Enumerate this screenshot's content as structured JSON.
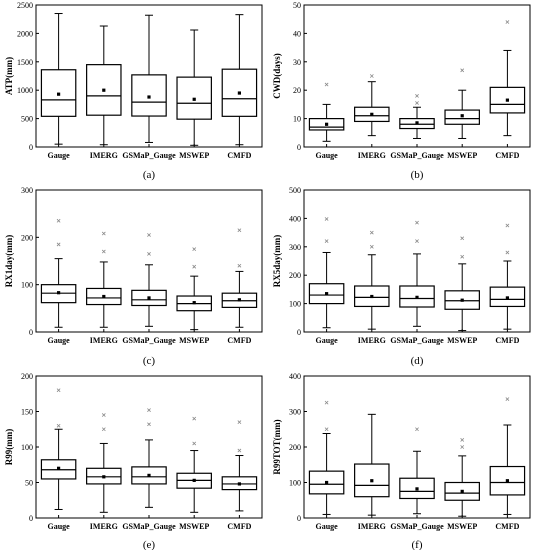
{
  "chart_data": [
    {
      "panel": "(a)",
      "type": "box",
      "ylabel": "ATP(mm)",
      "categories": [
        "Gauge",
        "IMERG",
        "GSMaP_Gauge",
        "MSWEP",
        "CMFD"
      ],
      "ylim": [
        0,
        2500
      ],
      "yticks": [
        0,
        500,
        1000,
        1500,
        2000,
        2500
      ],
      "boxes": [
        {
          "min": 50,
          "q1": 540,
          "median": 830,
          "q3": 1360,
          "max": 2350,
          "mean": 930,
          "outliers": []
        },
        {
          "min": 40,
          "q1": 560,
          "median": 900,
          "q3": 1450,
          "max": 2130,
          "mean": 1000,
          "outliers": []
        },
        {
          "min": 80,
          "q1": 545,
          "median": 790,
          "q3": 1270,
          "max": 2320,
          "mean": 880,
          "outliers": []
        },
        {
          "min": 30,
          "q1": 490,
          "median": 770,
          "q3": 1230,
          "max": 2060,
          "mean": 840,
          "outliers": []
        },
        {
          "min": 40,
          "q1": 540,
          "median": 850,
          "q3": 1370,
          "max": 2330,
          "mean": 950,
          "outliers": []
        }
      ]
    },
    {
      "panel": "(b)",
      "type": "box",
      "ylabel": "CWD(days)",
      "categories": [
        "Gauge",
        "IMERG",
        "GSMaP_Gauge",
        "MSWEP",
        "CMFD"
      ],
      "ylim": [
        0,
        50
      ],
      "yticks": [
        0,
        10,
        20,
        30,
        40,
        50
      ],
      "boxes": [
        {
          "min": 2,
          "q1": 6,
          "median": 7,
          "q3": 10,
          "max": 15,
          "mean": 8,
          "outliers": [
            22
          ]
        },
        {
          "min": 4,
          "q1": 9,
          "median": 11,
          "q3": 14,
          "max": 23,
          "mean": 11.5,
          "outliers": [
            25
          ]
        },
        {
          "min": 3,
          "q1": 6.5,
          "median": 8,
          "q3": 10,
          "max": 14,
          "mean": 8.5,
          "outliers": [
            18,
            15.5
          ]
        },
        {
          "min": 3,
          "q1": 8,
          "median": 10,
          "q3": 13,
          "max": 20,
          "mean": 11,
          "outliers": [
            27
          ]
        },
        {
          "min": 4,
          "q1": 12,
          "median": 15,
          "q3": 21,
          "max": 34,
          "mean": 16.5,
          "outliers": [
            44
          ]
        }
      ]
    },
    {
      "panel": "(c)",
      "type": "box",
      "ylabel": "RX1day(mm)",
      "categories": [
        "Gauge",
        "IMERG",
        "GSMaP_Gauge",
        "MSWEP",
        "CMFD"
      ],
      "ylim": [
        0,
        300
      ],
      "yticks": [
        0,
        100,
        200,
        300
      ],
      "boxes": [
        {
          "min": 10,
          "q1": 62,
          "median": 82,
          "q3": 100,
          "max": 155,
          "mean": 83,
          "outliers": [
            185,
            235
          ]
        },
        {
          "min": 10,
          "q1": 58,
          "median": 72,
          "q3": 92,
          "max": 148,
          "mean": 75,
          "outliers": [
            170,
            208
          ]
        },
        {
          "min": 12,
          "q1": 56,
          "median": 68,
          "q3": 88,
          "max": 142,
          "mean": 72,
          "outliers": [
            165,
            205
          ]
        },
        {
          "min": 5,
          "q1": 45,
          "median": 60,
          "q3": 76,
          "max": 118,
          "mean": 62,
          "outliers": [
            138,
            175
          ]
        },
        {
          "min": 10,
          "q1": 52,
          "median": 66,
          "q3": 82,
          "max": 128,
          "mean": 68,
          "outliers": [
            140,
            215
          ]
        }
      ]
    },
    {
      "panel": "(d)",
      "type": "box",
      "ylabel": "RX5day(mm)",
      "categories": [
        "Gauge",
        "IMERG",
        "GSMaP_Gauge",
        "MSWEP",
        "CMFD"
      ],
      "ylim": [
        0,
        500
      ],
      "yticks": [
        0,
        100,
        200,
        300,
        400,
        500
      ],
      "boxes": [
        {
          "min": 15,
          "q1": 100,
          "median": 130,
          "q3": 170,
          "max": 280,
          "mean": 135,
          "outliers": [
            320,
            398
          ]
        },
        {
          "min": 10,
          "q1": 90,
          "median": 122,
          "q3": 162,
          "max": 272,
          "mean": 125,
          "outliers": [
            300,
            350
          ]
        },
        {
          "min": 20,
          "q1": 88,
          "median": 118,
          "q3": 162,
          "max": 275,
          "mean": 122,
          "outliers": [
            320,
            385
          ]
        },
        {
          "min": 5,
          "q1": 80,
          "median": 110,
          "q3": 145,
          "max": 240,
          "mean": 112,
          "outliers": [
            265,
            330
          ]
        },
        {
          "min": 10,
          "q1": 90,
          "median": 115,
          "q3": 158,
          "max": 250,
          "mean": 120,
          "outliers": [
            280,
            375
          ]
        }
      ]
    },
    {
      "panel": "(e)",
      "type": "box",
      "ylabel": "R99(mm)",
      "categories": [
        "Gauge",
        "IMERG",
        "GSMaP_Gauge",
        "MSWEP",
        "CMFD"
      ],
      "ylim": [
        0,
        200
      ],
      "yticks": [
        0,
        50,
        100,
        150,
        200
      ],
      "boxes": [
        {
          "min": 12,
          "q1": 55,
          "median": 68,
          "q3": 82,
          "max": 125,
          "mean": 70,
          "outliers": [
            130,
            180
          ]
        },
        {
          "min": 8,
          "q1": 48,
          "median": 58,
          "q3": 70,
          "max": 105,
          "mean": 58,
          "outliers": [
            125,
            145
          ]
        },
        {
          "min": 15,
          "q1": 48,
          "median": 58,
          "q3": 72,
          "max": 110,
          "mean": 60,
          "outliers": [
            132,
            152
          ]
        },
        {
          "min": 8,
          "q1": 42,
          "median": 53,
          "q3": 63,
          "max": 95,
          "mean": 53,
          "outliers": [
            105,
            140
          ]
        },
        {
          "min": 10,
          "q1": 40,
          "median": 48,
          "q3": 58,
          "max": 88,
          "mean": 48,
          "outliers": [
            95,
            135
          ]
        }
      ]
    },
    {
      "panel": "(f)",
      "type": "box",
      "ylabel": "R99TOT(mm)",
      "categories": [
        "Gauge",
        "IMERG",
        "GSMaP_Gauge",
        "MSWEP",
        "CMFD"
      ],
      "ylim": [
        0,
        400
      ],
      "yticks": [
        0,
        100,
        200,
        300,
        400
      ],
      "boxes": [
        {
          "min": 10,
          "q1": 68,
          "median": 95,
          "q3": 132,
          "max": 238,
          "mean": 100,
          "outliers": [
            250,
            325
          ]
        },
        {
          "min": 8,
          "q1": 60,
          "median": 92,
          "q3": 152,
          "max": 292,
          "mean": 105,
          "outliers": []
        },
        {
          "min": 12,
          "q1": 55,
          "median": 75,
          "q3": 112,
          "max": 188,
          "mean": 82,
          "outliers": [
            250
          ]
        },
        {
          "min": 5,
          "q1": 50,
          "median": 70,
          "q3": 100,
          "max": 175,
          "mean": 75,
          "outliers": [
            200,
            220
          ]
        },
        {
          "min": 10,
          "q1": 65,
          "median": 100,
          "q3": 145,
          "max": 262,
          "mean": 105,
          "outliers": [
            335
          ]
        }
      ]
    }
  ]
}
